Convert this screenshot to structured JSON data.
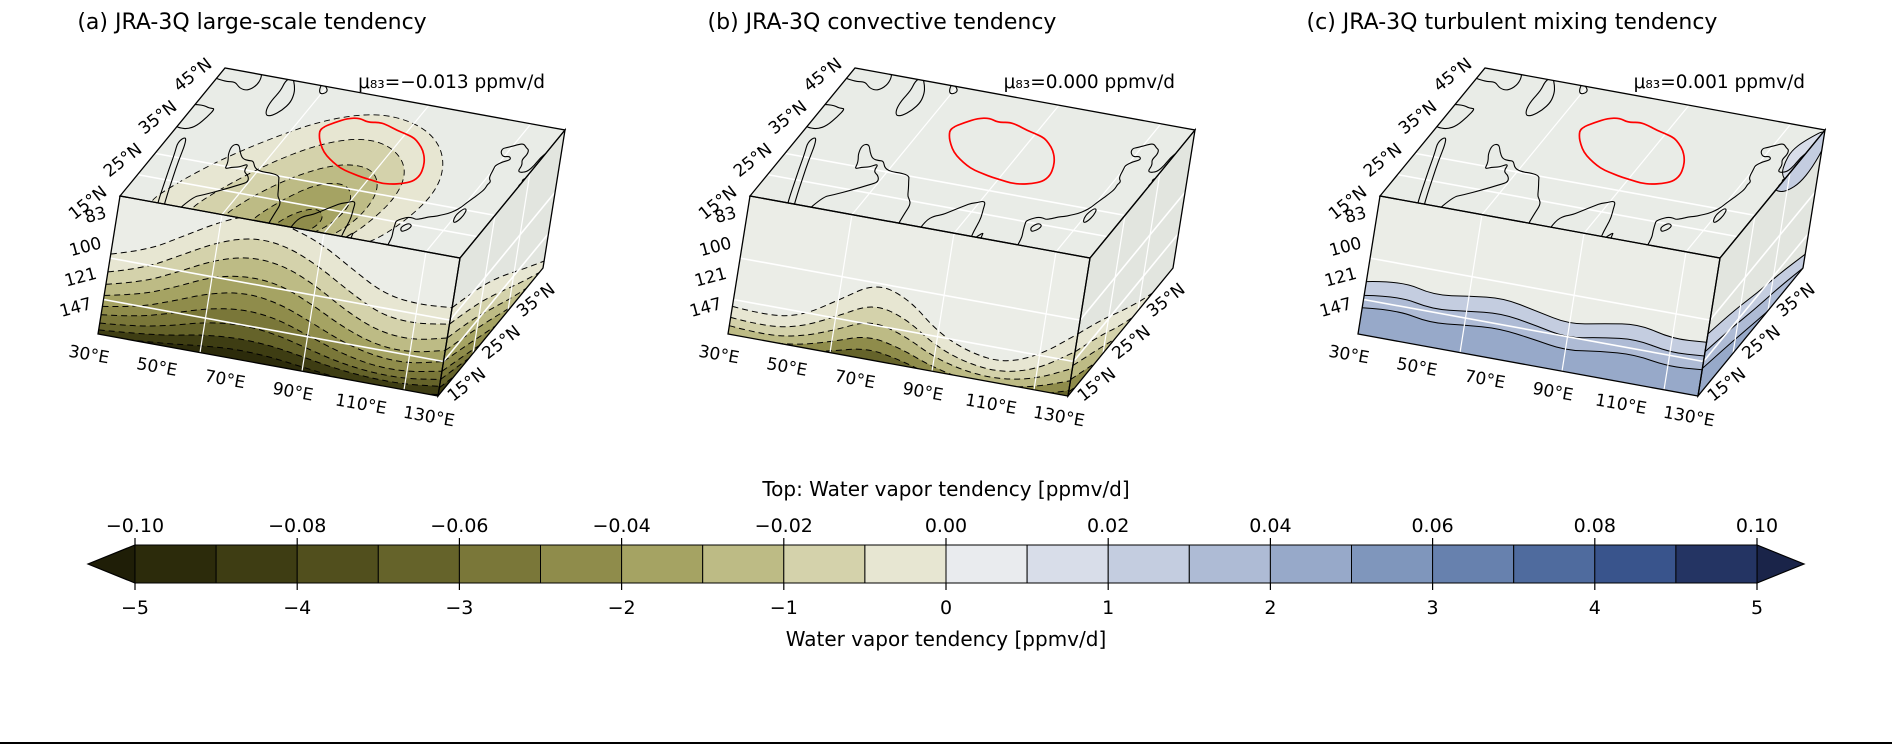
{
  "chart_data": {
    "type": "heatmap",
    "subtype": "3d-box-filled-contour-maps",
    "panels": [
      {
        "id": "a",
        "label": "(a) JRA-3Q large-scale tendency",
        "mu_text": "μ₈₃=−0.013 ppmv/d",
        "mu83_ppmv_per_day": -0.013,
        "field": "large-scale water vapor tendency",
        "dominant_sign": "negative (olive/khaki shading, dashed contours over plateau and lower levels)"
      },
      {
        "id": "b",
        "label": "(b) JRA-3Q convective tendency",
        "mu_text": "μ₈₃=0.000 ppmv/d",
        "mu83_ppmv_per_day": 0.0,
        "field": "convective water vapor tendency",
        "dominant_sign": "weak negative near 147 hPa (olive shading, dashed contours)"
      },
      {
        "id": "c",
        "label": "(c) JRA-3Q turbulent mixing tendency",
        "mu_text": "μ₈₃=0.001 ppmv/d",
        "mu83_ppmv_per_day": 0.001,
        "field": "turbulent mixing water vapor tendency",
        "dominant_sign": "weak positive near 147 hPa (blue shading, solid contours)"
      }
    ],
    "axes": {
      "lon_tick_labels": [
        "30°E",
        "50°E",
        "70°E",
        "90°E",
        "110°E",
        "130°E"
      ],
      "lat_left_tick_labels": [
        "15°N",
        "25°N",
        "35°N",
        "45°N"
      ],
      "lat_right_tick_labels": [
        "15°N",
        "25°N",
        "35°N"
      ],
      "pressure_tick_labels": [
        "83",
        "100",
        "121",
        "147"
      ],
      "lon_range_deg_e": [
        30,
        130
      ],
      "lat_range_deg_n": [
        15,
        45
      ],
      "pressure_range_hpa": [
        83,
        147
      ]
    },
    "map_overlay": {
      "coastline_color": "#000000",
      "region_outline_color": "#ff0000",
      "region_outline": "Tibetan Plateau boundary"
    },
    "box_style": {
      "top_face_color": "#e9ece7",
      "front_face_color": "#ebede7",
      "right_face_color": "#e2e5df",
      "gridline_color": "#ffffff"
    },
    "colorbar": {
      "top_label": "Top: Water vapor tendency [ppmv/d]",
      "bottom_label": "Water vapor tendency [ppmv/d]",
      "top_ticks": [
        "−0.10",
        "−0.08",
        "−0.06",
        "−0.04",
        "−0.02",
        "0.00",
        "0.02",
        "0.04",
        "0.06",
        "0.08",
        "0.10"
      ],
      "bottom_ticks": [
        "−5",
        "−4",
        "−3",
        "−2",
        "−1",
        "0",
        "1",
        "2",
        "3",
        "4",
        "5"
      ],
      "bottom_range": [
        -5,
        5
      ],
      "top_range": [
        -0.1,
        0.1
      ],
      "segment_colors": [
        "#2c2b0b",
        "#3e3d13",
        "#514f1d",
        "#65632a",
        "#7a7739",
        "#8f8c4b",
        "#a5a363",
        "#bdbb85",
        "#d4d2ab",
        "#e7e6d2",
        "#e9ebee",
        "#d8dde9",
        "#c4cde0",
        "#aebbd5",
        "#97a9c9",
        "#7f96bc",
        "#6781ae",
        "#4f6b9e",
        "#39548c",
        "#243463"
      ],
      "left_arrow_color": "#1f1e07",
      "right_arrow_color": "#1a2449"
    }
  }
}
